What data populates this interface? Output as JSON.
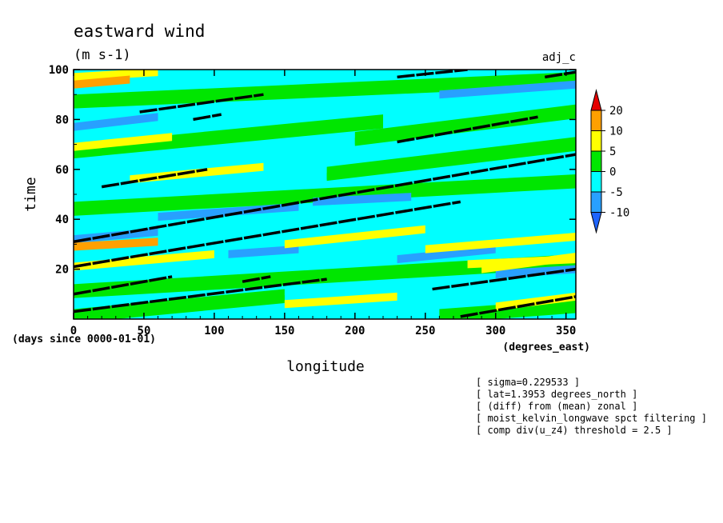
{
  "chart_data": {
    "type": "heatmap",
    "title": "eastward wind",
    "units": "(m s-1)",
    "corner_label": "adj_c",
    "xlabel": "longitude",
    "x_units_label": "(degrees_east)",
    "ylabel": "time",
    "y_units_label": "(days since 0000-01-01)",
    "xlim": [
      0,
      357
    ],
    "ylim": [
      0,
      100
    ],
    "x_ticks": [
      0,
      50,
      100,
      150,
      200,
      250,
      300,
      350
    ],
    "y_ticks": [
      20,
      40,
      60,
      80,
      100
    ],
    "x_tick_labels": [
      "0",
      "50",
      "100",
      "150",
      "200",
      "250",
      "300",
      "350"
    ],
    "y_tick_labels": [
      "20",
      "40",
      "60",
      "80",
      "100"
    ],
    "colorbar": {
      "levels": [
        -10,
        -5,
        0,
        5,
        10,
        20
      ],
      "labels": [
        "20",
        "10",
        "5",
        "0",
        "-5",
        "-10"
      ],
      "colors": [
        "#1e64ff",
        "#28a0ff",
        "#00ffff",
        "#00e600",
        "#ffff00",
        "#ffa000",
        "#e60000"
      ]
    },
    "series": [
      {
        "name": "wind_positive_5_10",
        "color": "#ffff00",
        "bands": [
          [
            0,
            97,
            60,
            99
          ],
          [
            0,
            69,
            70,
            73
          ],
          [
            40,
            56,
            135,
            61
          ],
          [
            150,
            30,
            250,
            36
          ],
          [
            250,
            28,
            357,
            33
          ],
          [
            290,
            20,
            357,
            25
          ],
          [
            0,
            21,
            100,
            26
          ],
          [
            150,
            6,
            230,
            9
          ],
          [
            280,
            22,
            357,
            24
          ],
          [
            300,
            5,
            357,
            9
          ]
        ]
      },
      {
        "name": "wind_positive_10_20",
        "color": "#ffa000",
        "bands": [
          [
            0,
            94,
            40,
            96
          ],
          [
            0,
            29,
            60,
            31
          ]
        ]
      },
      {
        "name": "wind_negative_minus10_minus5",
        "color": "#28a0ff",
        "bands": [
          [
            0,
            32,
            60,
            35
          ],
          [
            60,
            41,
            160,
            45
          ],
          [
            170,
            47,
            240,
            49
          ],
          [
            300,
            18,
            357,
            20
          ],
          [
            230,
            24,
            300,
            28
          ],
          [
            110,
            26,
            160,
            28
          ],
          [
            260,
            90,
            357,
            94
          ],
          [
            0,
            77,
            60,
            81
          ]
        ]
      },
      {
        "name": "wind_0_5",
        "color": "#00e600",
        "bands": [
          [
            0,
            86,
            357,
            95
          ],
          [
            0,
            66,
            220,
            78
          ],
          [
            0,
            43,
            357,
            54
          ],
          [
            0,
            10,
            357,
            22
          ],
          [
            180,
            57,
            357,
            69
          ],
          [
            0,
            0,
            150,
            8
          ],
          [
            260,
            0,
            357,
            4
          ],
          [
            200,
            71,
            357,
            82
          ]
        ]
      }
    ],
    "contour_lines": [
      {
        "value": 2.5,
        "x": [
          0,
          357
        ],
        "y": [
          31,
          66
        ]
      },
      {
        "value": 2.5,
        "x": [
          0,
          275
        ],
        "y": [
          21,
          47
        ]
      },
      {
        "value": 2.5,
        "x": [
          0,
          180
        ],
        "y": [
          3,
          16
        ]
      },
      {
        "value": 2.5,
        "x": [
          0,
          70
        ],
        "y": [
          10,
          17
        ]
      },
      {
        "value": 2.5,
        "x": [
          47,
          135
        ],
        "y": [
          83,
          90
        ]
      },
      {
        "value": 2.5,
        "x": [
          20,
          95
        ],
        "y": [
          53,
          60
        ]
      },
      {
        "value": 2.5,
        "x": [
          230,
          330
        ],
        "y": [
          71,
          81
        ]
      },
      {
        "value": 2.5,
        "x": [
          275,
          357
        ],
        "y": [
          1,
          9
        ]
      },
      {
        "value": 2.5,
        "x": [
          255,
          357
        ],
        "y": [
          12,
          20
        ]
      },
      {
        "value": 2.5,
        "x": [
          230,
          280
        ],
        "y": [
          97,
          100
        ]
      },
      {
        "value": 2.5,
        "x": [
          335,
          357
        ],
        "y": [
          97,
          99
        ]
      },
      {
        "value": 2.5,
        "x": [
          85,
          105
        ],
        "y": [
          80,
          82
        ]
      },
      {
        "value": 2.5,
        "x": [
          120,
          140
        ],
        "y": [
          15,
          17
        ]
      }
    ]
  },
  "annotations": [
    "[ sigma=0.229533 ]",
    "[ lat=1.3953 degrees_north ]",
    "[ (diff) from (mean) zonal ]",
    "[ moist_kelvin_longwave spct filtering ]",
    "[ comp div(u_z4) threshold = 2.5 ]"
  ],
  "colors": {
    "background_field": "#00ffff",
    "axis": "#000000"
  }
}
